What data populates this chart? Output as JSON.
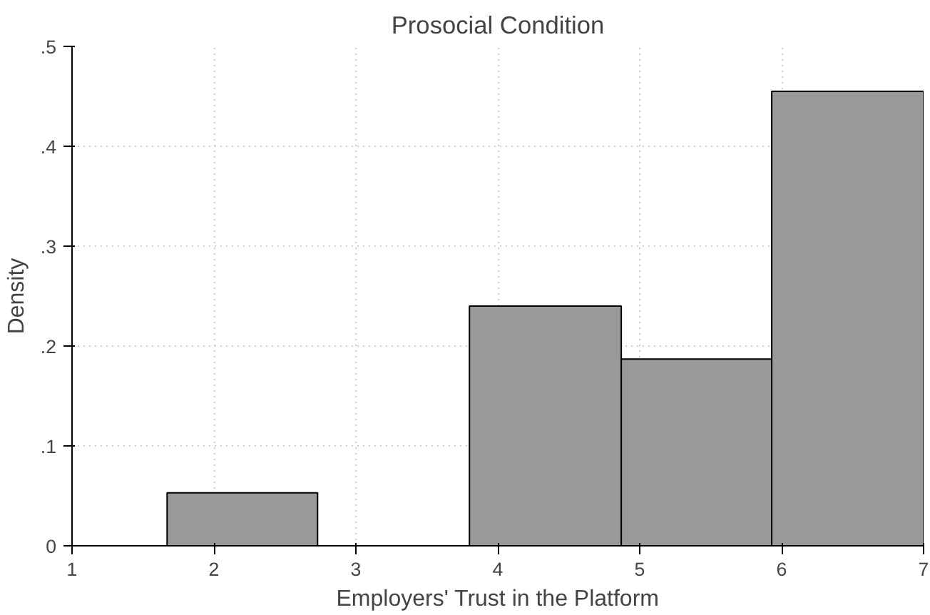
{
  "chart_data": {
    "type": "histogram",
    "title": "Prosocial Condition",
    "xlabel": "Employers' Trust in the Platform",
    "ylabel": "Density",
    "bins": [
      1.67,
      2.73,
      3.8,
      4.87,
      5.93,
      7.0
    ],
    "values": [
      0.053,
      0,
      0.24,
      0.187,
      0.455
    ],
    "color": "#999999",
    "xlim": [
      1,
      7
    ],
    "xticks": [
      1,
      2,
      3,
      4,
      5,
      6,
      7
    ],
    "ylim": [
      0,
      0.5
    ],
    "yticks": [
      {
        "value": 0,
        "label": "0"
      },
      {
        "value": 0.1,
        "label": ".1"
      },
      {
        "value": 0.2,
        "label": ".2"
      },
      {
        "value": 0.3,
        "label": ".3"
      },
      {
        "value": 0.4,
        "label": ".4"
      },
      {
        "value": 0.5,
        "label": ".5"
      }
    ],
    "grid": true
  }
}
